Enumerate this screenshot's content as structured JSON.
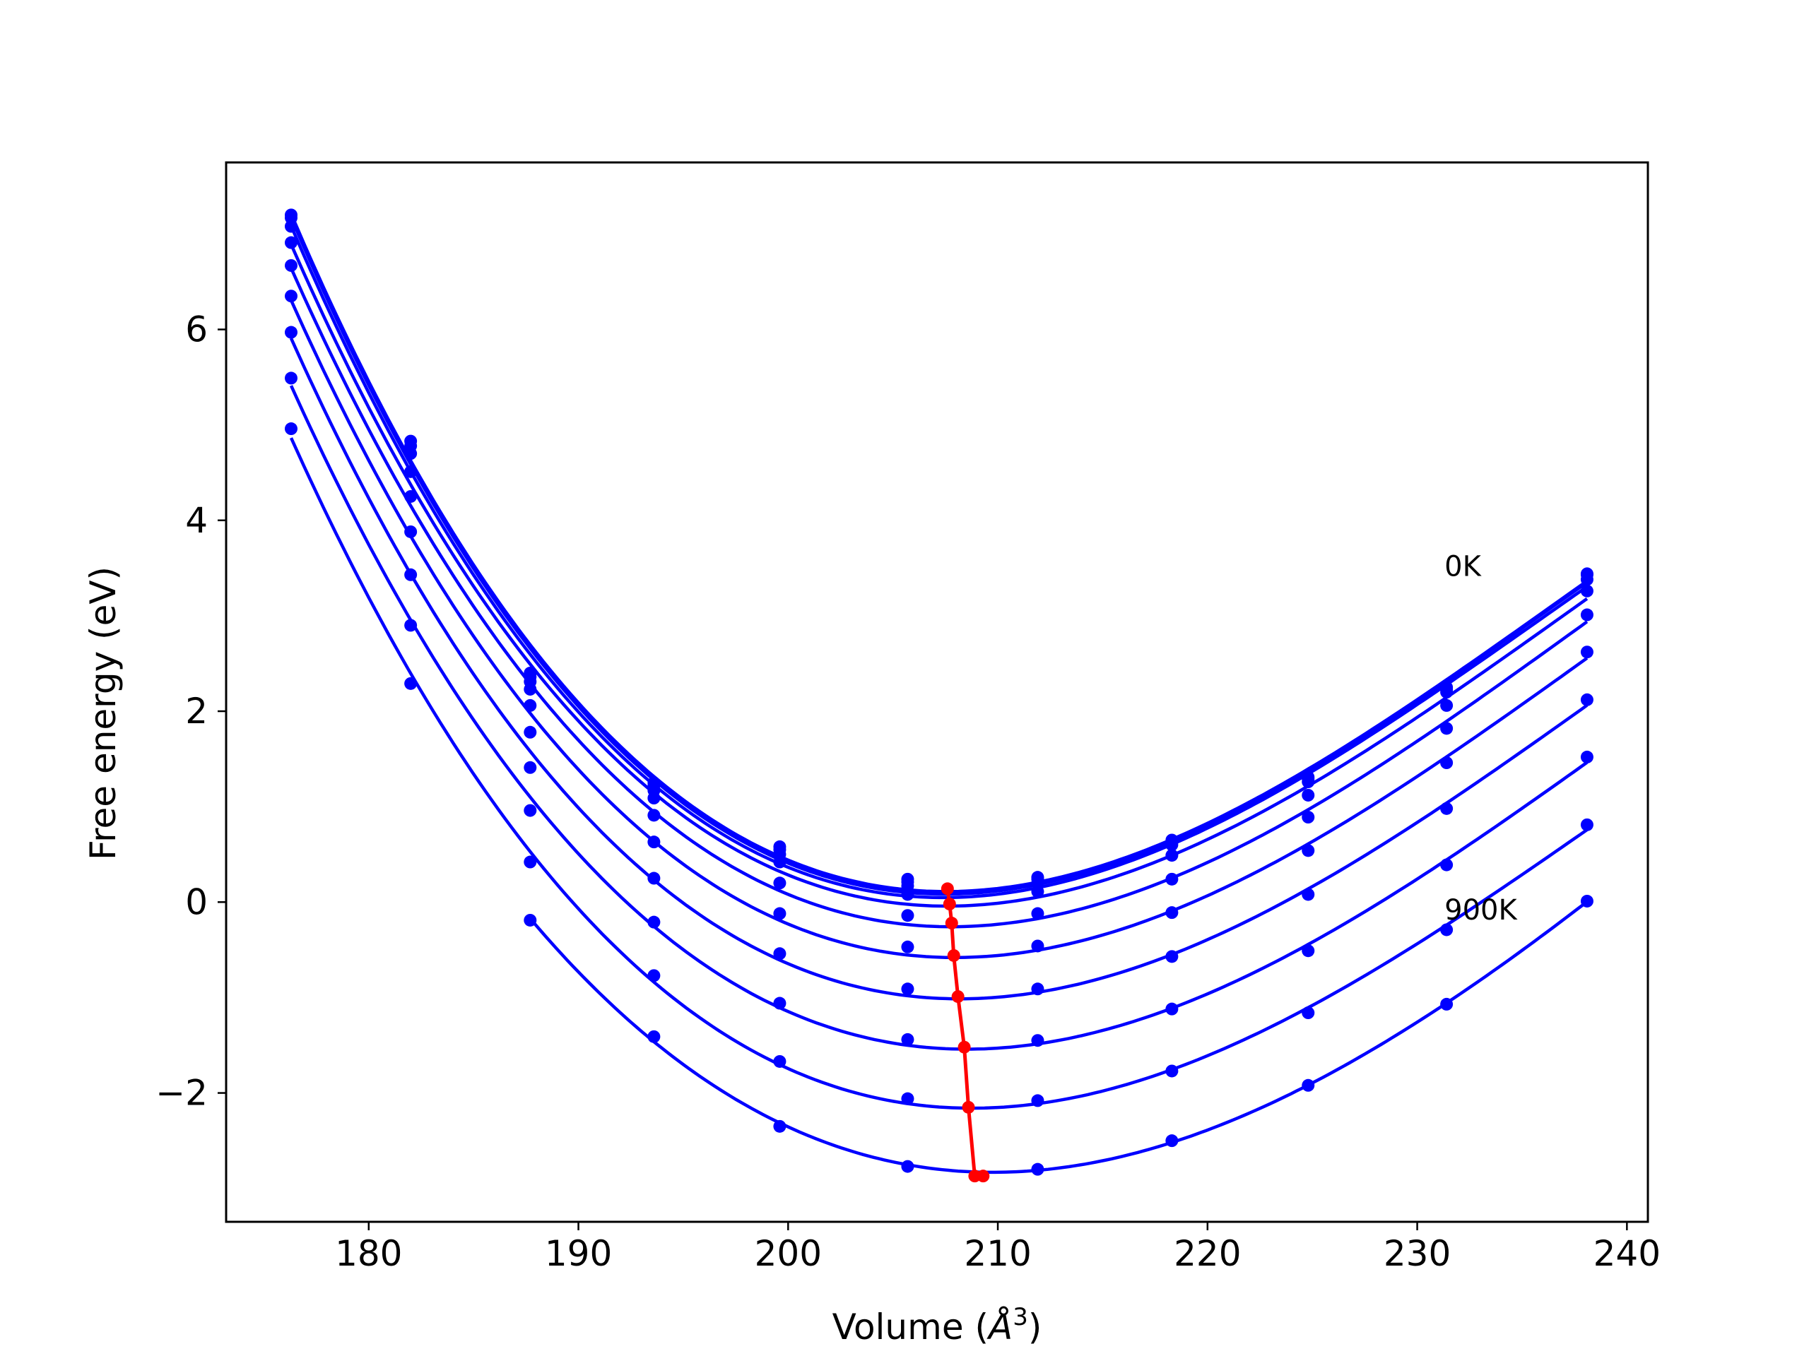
{
  "chart_data": {
    "type": "line",
    "title": "",
    "xlabel": "Volume (Å³)",
    "xlabel_main": "Volume (",
    "xlabel_unit": "Å",
    "xlabel_exp": "3",
    "xlabel_close": ")",
    "ylabel": "Free energy (eV)",
    "xlim": [
      173.2,
      241.0
    ],
    "ylim": [
      -3.35,
      7.75
    ],
    "xticks": [
      180,
      190,
      200,
      210,
      220,
      230,
      240
    ],
    "xtick_labels": [
      "180",
      "190",
      "200",
      "210",
      "220",
      "230",
      "240"
    ],
    "yticks": [
      -2,
      0,
      2,
      4,
      6
    ],
    "ytick_labels": [
      "−2",
      "0",
      "2",
      "4",
      "6"
    ],
    "grid": false,
    "curve_color": "#0000ff",
    "minima_color": "#ff0000",
    "volumes": [
      176.3,
      182.0,
      187.7,
      193.6,
      199.6,
      205.7,
      211.9,
      218.3,
      224.8,
      231.4,
      238.1
    ],
    "annotations": [
      {
        "text": "0K",
        "x": 231.3,
        "y": 3.52
      },
      {
        "text": "900K",
        "x": 231.3,
        "y": -0.08
      }
    ],
    "series": [
      {
        "values": [
          7.2,
          4.83,
          2.4,
          1.25,
          0.58,
          0.24,
          0.26,
          0.65,
          1.31,
          2.25,
          3.44
        ]
      },
      {
        "values": [
          7.17,
          4.78,
          2.36,
          1.22,
          0.55,
          0.21,
          0.24,
          0.63,
          1.29,
          2.23,
          3.43
        ]
      },
      {
        "values": [
          7.08,
          4.7,
          2.31,
          1.17,
          0.5,
          0.17,
          0.2,
          0.6,
          1.26,
          2.2,
          3.38
        ]
      },
      {
        "values": [
          6.91,
          4.51,
          2.23,
          1.09,
          0.42,
          0.08,
          0.11,
          0.49,
          1.12,
          2.06,
          3.26
        ]
      },
      {
        "values": [
          6.67,
          4.25,
          2.06,
          0.91,
          0.2,
          -0.14,
          -0.12,
          0.24,
          0.89,
          1.82,
          3.01
        ]
      },
      {
        "values": [
          6.35,
          3.88,
          1.78,
          0.63,
          -0.12,
          -0.47,
          -0.46,
          -0.11,
          0.54,
          1.46,
          2.62
        ]
      },
      {
        "values": [
          5.97,
          3.43,
          1.41,
          0.25,
          -0.54,
          -0.91,
          -0.91,
          -0.57,
          0.08,
          0.98,
          2.12
        ]
      },
      {
        "values": [
          5.49,
          2.9,
          0.96,
          -0.21,
          -1.06,
          -1.44,
          -1.45,
          -1.12,
          -0.51,
          0.39,
          1.52
        ]
      },
      {
        "values": [
          4.96,
          2.29,
          0.42,
          -0.77,
          -1.67,
          -2.06,
          -2.08,
          -1.77,
          -1.16,
          -0.29,
          0.81
        ]
      },
      {
        "values": [
          null,
          null,
          -0.19,
          -1.41,
          -2.35,
          -2.77,
          -2.8,
          -2.5,
          -1.92,
          -1.07,
          0.01
        ]
      }
    ],
    "minima": {
      "x": [
        207.6,
        207.7,
        207.8,
        207.9,
        208.1,
        208.4,
        208.6,
        208.9,
        209.3
      ],
      "y": [
        0.14,
        -0.02,
        -0.22,
        -0.56,
        -0.99,
        -1.52,
        -2.15,
        -2.87,
        -2.87
      ]
    }
  }
}
